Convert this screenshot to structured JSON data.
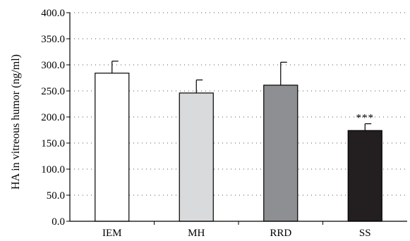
{
  "chart_data": {
    "type": "bar",
    "title": "",
    "xlabel": "",
    "ylabel": "HA in vitreous humor (ng/ml)",
    "categories": [
      "IEM",
      "MH",
      "RRD",
      "SS"
    ],
    "values": [
      284.0,
      246.0,
      261.0,
      174.0
    ],
    "errors": [
      23.0,
      25.0,
      44.0,
      13.0
    ],
    "ylim": [
      0,
      400
    ],
    "yticks": [
      "0.0",
      "50.0",
      "100.0",
      "150.0",
      "200.0",
      "250.0",
      "300.0",
      "350.0",
      "400.0"
    ],
    "grid": "horizontal-dotted",
    "bar_colors": [
      "#ffffff",
      "#d9dadc",
      "#8e8f92",
      "#231f20"
    ],
    "bar_edge_color": "#000000",
    "annotations": [
      {
        "category": "SS",
        "text": "***"
      }
    ]
  }
}
